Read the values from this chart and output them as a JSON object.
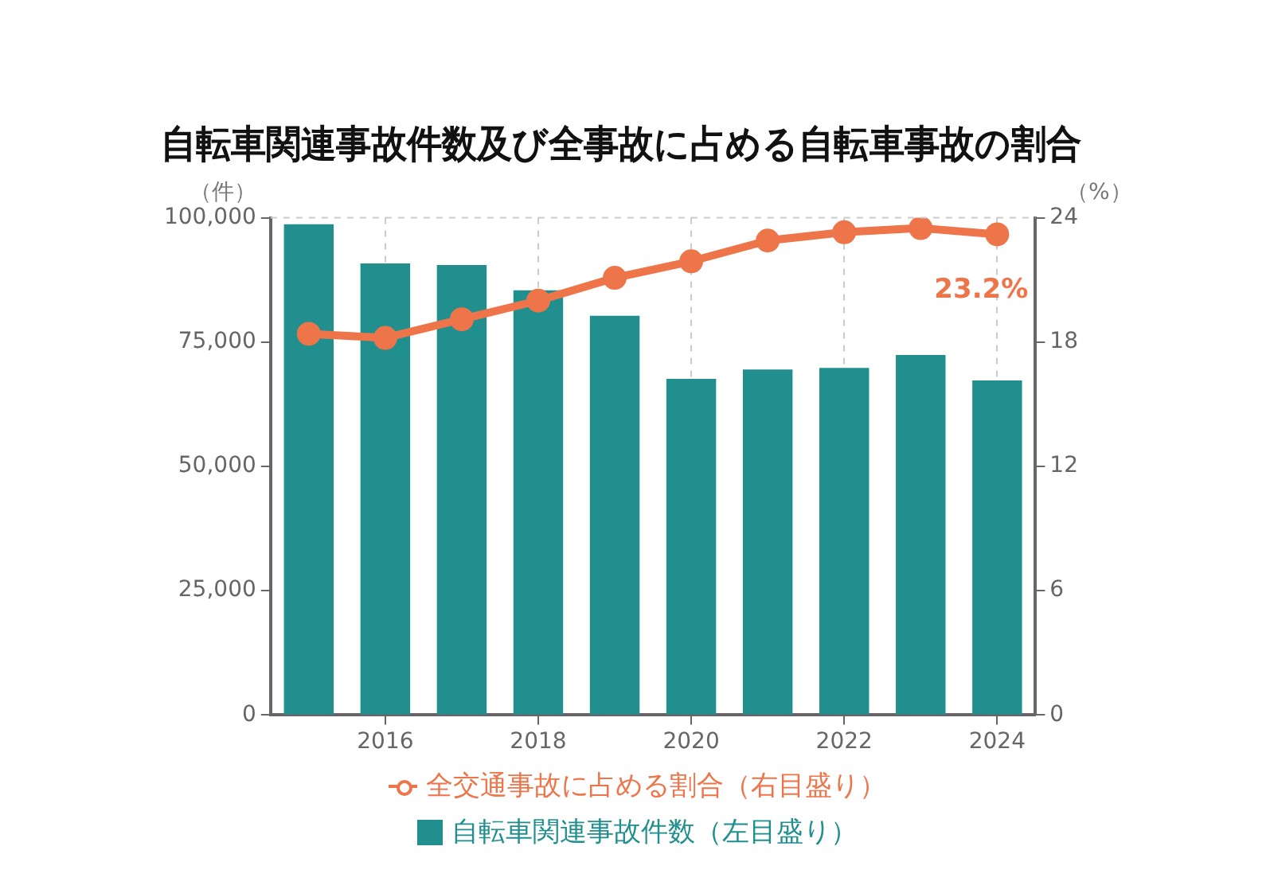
{
  "chart_data": {
    "type": "bar",
    "title": "自転車関連事故件数及び全事故に占める自転車事故の割合",
    "categories": [
      null,
      "2016",
      null,
      "2018",
      null,
      "2020",
      null,
      "2022",
      null,
      "2024"
    ],
    "ylabel": "（件）",
    "y2label": "（%）",
    "series": [
      {
        "name": "全交通事故に占める割合（右目盛り）",
        "type": "line",
        "axis": "y2",
        "color": "#ee7449",
        "values": [
          18.4,
          18.2,
          19.1,
          20.0,
          21.1,
          21.9,
          22.9,
          23.3,
          23.5,
          23.2
        ],
        "value_labels": [
          null,
          null,
          null,
          null,
          null,
          null,
          null,
          null,
          null,
          "23.2%"
        ]
      },
      {
        "name": "自転車関連事故件数（左目盛り）",
        "color": "#228f8f",
        "values": [
          98700,
          90800,
          90500,
          85400,
          80300,
          67600,
          69500,
          69800,
          72400,
          67300
        ]
      }
    ],
    "ylim": [
      0,
      100000
    ],
    "yticks": [
      0,
      {
        "value": 25000,
        "label": "25,000"
      },
      {
        "value": 50000,
        "label": "50,000"
      },
      {
        "value": 75000,
        "label": "75,000"
      },
      {
        "value": 100000,
        "label": "100,000"
      }
    ],
    "y2lim": [
      0,
      24
    ],
    "y2ticks": [
      0,
      6,
      12,
      18,
      24
    ],
    "grid": "x",
    "legend": "bottom",
    "marker": "circle"
  }
}
